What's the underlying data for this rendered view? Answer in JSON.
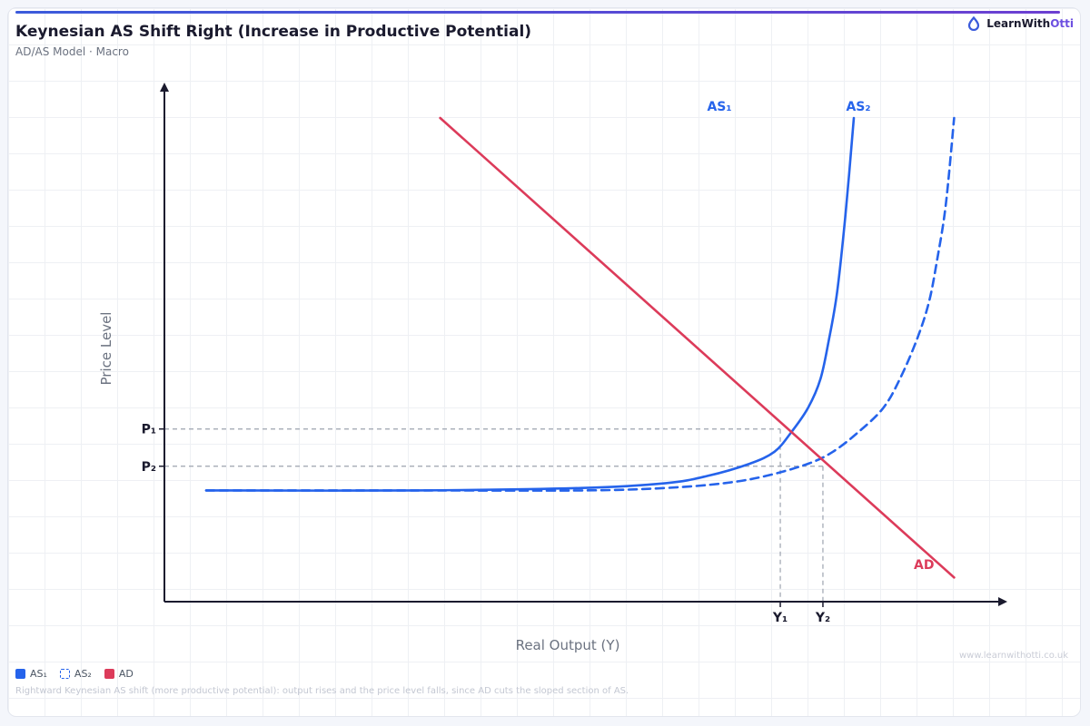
{
  "header": {
    "title": "Keynesian AS Shift Right (Increase in Productive Potential)",
    "subtitle": "AD/AS Model · Macro"
  },
  "brand": {
    "part1": "LearnWith",
    "part2": "Otti",
    "logo_icon": "otti-drop-logo-icon"
  },
  "chart_data": {
    "type": "line",
    "xlabel": "Real Output (Y)",
    "ylabel": "Price Level",
    "xlim": [
      0,
      100
    ],
    "ylim": [
      0,
      100
    ],
    "grid": true,
    "legend_position": "bottom-left",
    "series": [
      {
        "name": "AS₁",
        "style": "solid",
        "color": "#2563eb",
        "x": [
          5,
          30,
          50,
          60,
          65,
          70,
          73,
          75,
          77,
          78.5,
          79.5,
          80.5,
          81.5,
          82.5
        ],
        "y": [
          23,
          23,
          23.5,
          24.5,
          26,
          28.5,
          31,
          35,
          40,
          46,
          54,
          64,
          80,
          100
        ]
      },
      {
        "name": "AS₂",
        "style": "dashed",
        "color": "#2563eb",
        "x": [
          5,
          30,
          50,
          60,
          67,
          72,
          77,
          80,
          83,
          86,
          88,
          90,
          91.5,
          92.5,
          93.5,
          94.5
        ],
        "y": [
          23,
          23,
          23,
          23.5,
          24.5,
          26,
          28.5,
          31,
          35,
          40,
          46,
          54,
          62,
          71,
          82,
          100
        ]
      },
      {
        "name": "AD",
        "style": "solid",
        "color": "#dc3b5a",
        "x": [
          33,
          94.5
        ],
        "y": [
          100,
          5
        ]
      }
    ],
    "equilibria": [
      {
        "x": 73.7,
        "y": 35.7,
        "x_label": "Y₁",
        "y_label": "P₁"
      },
      {
        "x": 78.8,
        "y": 28.0,
        "x_label": "Y₂",
        "y_label": "P₂"
      }
    ],
    "curve_labels": {
      "as1": "AS₁",
      "as2": "AS₂",
      "ad": "AD"
    },
    "legend": [
      {
        "label": "AS₁",
        "swatch": "solid"
      },
      {
        "label": "AS₂",
        "swatch": "dashed"
      },
      {
        "label": "AD",
        "swatch": "solid-red"
      }
    ]
  },
  "footer": {
    "caption": "Rightward Keynesian AS shift (more productive potential): output rises and the price level falls, since AD cuts the sloped section of AS.",
    "watermark": "www.learnwithotti.co.uk"
  }
}
